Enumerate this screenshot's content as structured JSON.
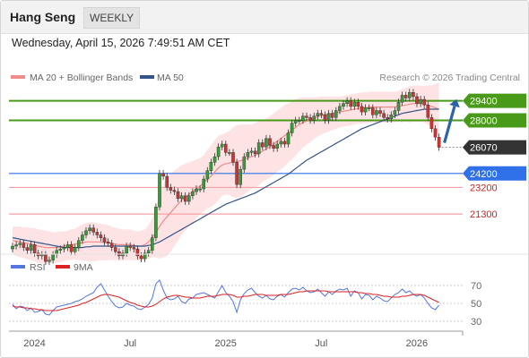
{
  "header": {
    "instrument": "Hang Seng",
    "period": "WEEKLY",
    "datetime": "Wednesday, April 15, 2026 7:49:51 AM CET"
  },
  "legend": {
    "ma20_label": "MA 20 + Bollinger Bands",
    "ma50_label": "MA 50",
    "copyright": "Research © 2026 Trading Central",
    "rsi_label": "RSI",
    "ma9_label": "9MA"
  },
  "colors": {
    "up": "#3a9a3a",
    "down": "#cc3333",
    "ma20": "#f08c8c",
    "ma50": "#33558a",
    "band": "#fde3e3",
    "resistance": "#4a9a1a",
    "support": "#3070e8",
    "support_line": "#f4a0a8",
    "rsi": "#5577dd",
    "rsi_ma": "#dd2222",
    "last": "#333333",
    "arrow": "#2d64a8"
  },
  "chart_data": {
    "type": "candlestick",
    "price_range": [
      19000,
      30400
    ],
    "levels": [
      {
        "value": 29400,
        "label": "29400",
        "kind": "resistance"
      },
      {
        "value": 28000,
        "label": "28000",
        "kind": "resistance"
      },
      {
        "value": 26070,
        "label": "26070",
        "kind": "last"
      },
      {
        "value": 24200,
        "label": "24200",
        "kind": "pivot"
      },
      {
        "value": 23200,
        "label": "23200",
        "kind": "support"
      },
      {
        "value": 21300,
        "label": "21300",
        "kind": "support"
      }
    ],
    "x_labels": [
      "2024",
      "Jul",
      "2025",
      "Jul",
      "2026"
    ],
    "x_label_index": [
      5,
      31,
      57,
      83,
      109
    ],
    "closes": [
      19000,
      19100,
      19200,
      18900,
      18700,
      19100,
      18500,
      18300,
      18400,
      17900,
      18000,
      18400,
      18700,
      18800,
      18900,
      19100,
      18600,
      18900,
      19400,
      19800,
      20100,
      20300,
      20000,
      19800,
      19600,
      19300,
      19200,
      18900,
      18600,
      18300,
      18500,
      19000,
      18900,
      18800,
      18300,
      18100,
      18500,
      18700,
      19600,
      21800,
      24200,
      24000,
      23200,
      23000,
      22900,
      22400,
      22600,
      22200,
      22600,
      22900,
      23100,
      23100,
      23800,
      24400,
      25000,
      25400,
      26100,
      26300,
      25700,
      25700,
      25000,
      23400,
      24500,
      25400,
      25700,
      25800,
      25600,
      26400,
      26100,
      26700,
      26200,
      26000,
      26300,
      26500,
      26300,
      27100,
      27800,
      28000,
      28000,
      28300,
      28200,
      28000,
      28300,
      28500,
      28400,
      28000,
      28500,
      28200,
      28700,
      29000,
      29200,
      29400,
      29000,
      29300,
      29000,
      28600,
      28900,
      28900,
      28400,
      28700,
      28500,
      28200,
      28100,
      28400,
      28700,
      29300,
      29800,
      29600,
      30000,
      29700,
      29200,
      29500,
      29100,
      28200,
      27400,
      26800,
      26070
    ],
    "ma20": [
      19400,
      19350,
      19300,
      19250,
      19200,
      19150,
      19100,
      19000,
      18950,
      18900,
      18900,
      18900,
      18900,
      18950,
      19000,
      19050,
      19100,
      19150,
      19200,
      19250,
      19300,
      19300,
      19300,
      19300,
      19300,
      19250,
      19250,
      19200,
      19150,
      19100,
      19100,
      19100,
      19100,
      19050,
      19000,
      19000,
      19100,
      19300,
      19600,
      20000,
      20400,
      20800,
      21100,
      21400,
      21700,
      22000,
      22300,
      22500,
      22700,
      22900,
      23100,
      23300,
      23500,
      23800,
      24000,
      24300,
      24600,
      24800,
      24900,
      24950,
      25000,
      25050,
      25100,
      25200,
      25300,
      25400,
      25500,
      25650,
      25800,
      25950,
      26100,
      26300,
      26500,
      26700,
      26900,
      27100,
      27300,
      27500,
      27700,
      27850,
      27950,
      28050,
      28150,
      28250,
      28350,
      28400,
      28450,
      28500,
      28550,
      28600,
      28650,
      28700,
      28750,
      28800,
      28850,
      28900,
      28900,
      28950,
      28950,
      28950,
      28950,
      28950,
      28950,
      28950,
      28950,
      29000,
      29050,
      29100,
      29150,
      29200,
      29200,
      29200,
      29150,
      29100,
      29000,
      28900,
      28800
    ],
    "bb_width": [
      1000,
      1050,
      1100,
      1100,
      1150,
      1150,
      1200,
      1200,
      1200,
      1200,
      1150,
      1100,
      1100,
      1100,
      1050,
      1050,
      1100,
      1100,
      1200,
      1300,
      1350,
      1400,
      1400,
      1350,
      1300,
      1300,
      1250,
      1200,
      1150,
      1150,
      1100,
      1100,
      1100,
      1050,
      1050,
      1100,
      1100,
      1200,
      1400,
      1800,
      2300,
      2600,
      2800,
      2800,
      2700,
      2600,
      2500,
      2400,
      2300,
      2200,
      2100,
      2000,
      2000,
      2100,
      2200,
      2300,
      2300,
      2200,
      2200,
      2300,
      2500,
      2600,
      2600,
      2500,
      2400,
      2300,
      2300,
      2300,
      2200,
      2200,
      2200,
      2200,
      2200,
      2200,
      2200,
      2100,
      2100,
      2000,
      1900,
      1800,
      1700,
      1600,
      1500,
      1400,
      1350,
      1300,
      1250,
      1200,
      1150,
      1100,
      1100,
      1100,
      1100,
      1100,
      1100,
      1100,
      1100,
      1100,
      1100,
      1100,
      1100,
      1100,
      1100,
      1100,
      1100,
      1100,
      1200,
      1200,
      1300,
      1300,
      1300,
      1300,
      1300,
      1400,
      1500,
      1700,
      1900
    ],
    "ma50": [
      19600,
      19550,
      19500,
      19450,
      19400,
      19350,
      19300,
      19250,
      19200,
      19150,
      19100,
      19050,
      19000,
      18950,
      18900,
      18900,
      18900,
      18900,
      18900,
      18900,
      18950,
      18950,
      19000,
      19000,
      19000,
      19000,
      19000,
      19000,
      19000,
      19000,
      19000,
      19000,
      19000,
      19000,
      19000,
      19000,
      19000,
      19050,
      19100,
      19200,
      19300,
      19450,
      19600,
      19750,
      19900,
      20050,
      20200,
      20350,
      20500,
      20650,
      20800,
      20950,
      21100,
      21250,
      21400,
      21550,
      21700,
      21850,
      22000,
      22100,
      22200,
      22300,
      22400,
      22500,
      22600,
      22700,
      22800,
      22950,
      23100,
      23250,
      23400,
      23550,
      23700,
      23850,
      24000,
      24150,
      24350,
      24550,
      24750,
      24950,
      25150,
      25300,
      25450,
      25600,
      25750,
      25900,
      26050,
      26200,
      26350,
      26500,
      26650,
      26800,
      26950,
      27100,
      27250,
      27400,
      27500,
      27600,
      27700,
      27800,
      27900,
      28000,
      28100,
      28200,
      28300,
      28400,
      28500,
      28550,
      28600,
      28650,
      28700,
      28750,
      28800,
      28800,
      28800,
      28800,
      28800
    ],
    "rsi": {
      "axis_ticks": [
        70,
        50,
        30
      ],
      "range": [
        25,
        75
      ],
      "rsi": [
        49,
        44,
        47,
        46,
        42,
        45,
        40,
        41,
        43,
        38,
        37,
        42,
        46,
        47,
        48,
        49,
        50,
        52,
        53,
        55,
        58,
        60,
        62,
        68,
        72,
        65,
        58,
        52,
        47,
        45,
        46,
        50,
        48,
        47,
        44,
        43,
        46,
        49,
        56,
        72,
        76,
        65,
        56,
        54,
        55,
        58,
        52,
        50,
        55,
        56,
        60,
        61,
        62,
        60,
        58,
        56,
        63,
        70,
        62,
        58,
        52,
        40,
        54,
        61,
        65,
        67,
        62,
        58,
        56,
        59,
        55,
        54,
        58,
        60,
        57,
        62,
        66,
        67,
        65,
        68,
        64,
        62,
        63,
        66,
        62,
        58,
        63,
        60,
        64,
        66,
        65,
        67,
        58,
        64,
        62,
        55,
        60,
        59,
        54,
        58,
        56,
        53,
        52,
        56,
        60,
        62,
        66,
        62,
        64,
        60,
        58,
        60,
        56,
        50,
        45,
        43,
        48
      ],
      "ma9": [
        47,
        46,
        46,
        45,
        45,
        44,
        44,
        43,
        43,
        42,
        42,
        42,
        42,
        43,
        44,
        45,
        46,
        47,
        48,
        50,
        51,
        53,
        55,
        57,
        59,
        60,
        60,
        59,
        58,
        57,
        55,
        53,
        51,
        50,
        48,
        47,
        46,
        46,
        47,
        49,
        52,
        55,
        57,
        58,
        59,
        59,
        58,
        57,
        57,
        56,
        56,
        56,
        57,
        58,
        58,
        58,
        59,
        60,
        60,
        60,
        59,
        57,
        57,
        58,
        58,
        59,
        60,
        60,
        60,
        59,
        59,
        59,
        59,
        60,
        60,
        60,
        61,
        62,
        63,
        63,
        64,
        64,
        64,
        64,
        64,
        64,
        63,
        63,
        63,
        63,
        63,
        63,
        63,
        63,
        62,
        62,
        61,
        61,
        60,
        60,
        59,
        58,
        58,
        57,
        57,
        57,
        58,
        58,
        59,
        60,
        60,
        60,
        59,
        57,
        55,
        53,
        51
      ]
    }
  }
}
